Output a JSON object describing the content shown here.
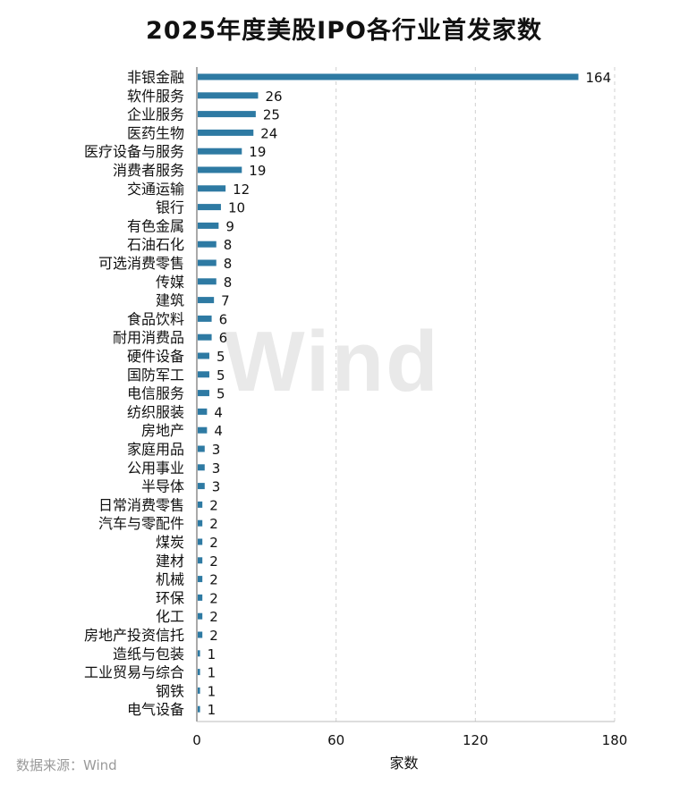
{
  "watermark": "Wind",
  "source": "数据来源：Wind",
  "colors": {
    "bar": "#2e7aa3",
    "grid": "#d0d0d0",
    "axis": "#333333"
  },
  "chart_data": {
    "type": "bar",
    "orientation": "horizontal",
    "title": "2025年度美股IPO各行业首发家数",
    "xlabel": "家数",
    "ylabel": "",
    "xlim": [
      0,
      180
    ],
    "xticks": [
      0,
      60,
      120,
      180
    ],
    "grid": "vertical-dashed",
    "data_labels": true,
    "categories": [
      "非银金融",
      "软件服务",
      "企业服务",
      "医药生物",
      "医疗设备与服务",
      "消费者服务",
      "交通运输",
      "银行",
      "有色金属",
      "石油石化",
      "可选消费零售",
      "传媒",
      "建筑",
      "食品饮料",
      "耐用消费品",
      "硬件设备",
      "国防军工",
      "电信服务",
      "纺织服装",
      "房地产",
      "家庭用品",
      "公用事业",
      "半导体",
      "日常消费零售",
      "汽车与零配件",
      "煤炭",
      "建材",
      "机械",
      "环保",
      "化工",
      "房地产投资信托",
      "造纸与包装",
      "工业贸易与综合",
      "钢铁",
      "电气设备"
    ],
    "values": [
      164,
      26,
      25,
      24,
      19,
      19,
      12,
      10,
      9,
      8,
      8,
      8,
      7,
      6,
      6,
      5,
      5,
      5,
      4,
      4,
      3,
      3,
      3,
      2,
      2,
      2,
      2,
      2,
      2,
      2,
      2,
      1,
      1,
      1,
      1
    ]
  }
}
